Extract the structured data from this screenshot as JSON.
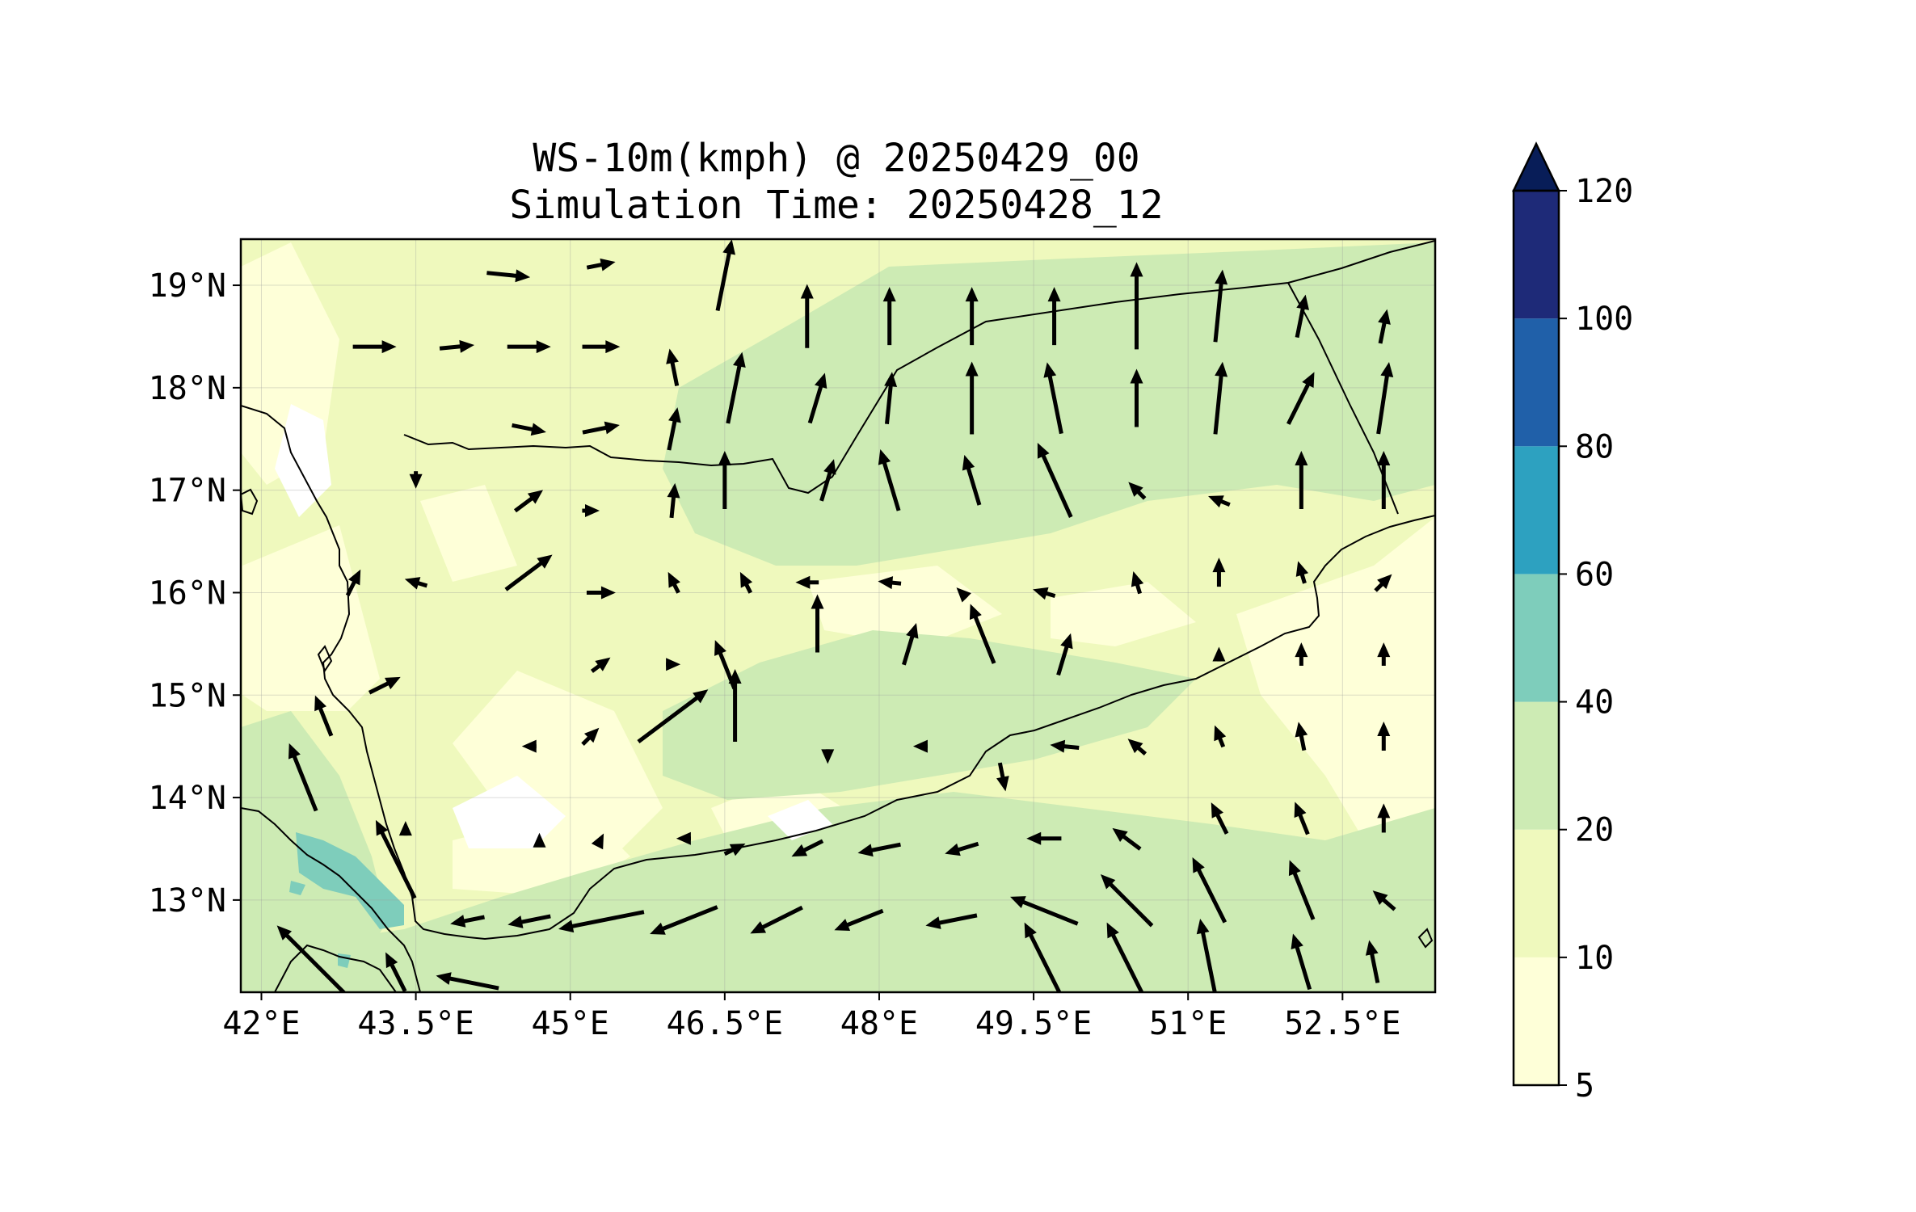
{
  "title": {
    "line1": "WS-10m(kmph) @ 20250429_00",
    "line2": "Simulation Time: 20250428_12"
  },
  "map": {
    "lon_range": [
      41.8,
      53.4
    ],
    "lat_range": [
      12.1,
      19.45
    ],
    "x_ticks": [
      {
        "value": 42.0,
        "label": "42°E"
      },
      {
        "value": 43.5,
        "label": "43.5°E"
      },
      {
        "value": 45.0,
        "label": "45°E"
      },
      {
        "value": 46.5,
        "label": "46.5°E"
      },
      {
        "value": 48.0,
        "label": "48°E"
      },
      {
        "value": 49.5,
        "label": "49.5°E"
      },
      {
        "value": 51.0,
        "label": "51°E"
      },
      {
        "value": 52.5,
        "label": "52.5°E"
      }
    ],
    "y_ticks": [
      {
        "value": 13,
        "label": "13°N"
      },
      {
        "value": 14,
        "label": "14°N"
      },
      {
        "value": 15,
        "label": "15°N"
      },
      {
        "value": 16,
        "label": "16°N"
      },
      {
        "value": 17,
        "label": "17°N"
      },
      {
        "value": 18,
        "label": "18°N"
      },
      {
        "value": 19,
        "label": "19°N"
      }
    ],
    "grid": true,
    "wind_vectors": [
      {
        "lon": 43.1,
        "lat": 18.4,
        "u": 1,
        "v": 0,
        "speed": 15
      },
      {
        "lon": 43.9,
        "lat": 18.4,
        "u": 1,
        "v": 0.1,
        "speed": 12
      },
      {
        "lon": 44.6,
        "lat": 18.4,
        "u": 1,
        "v": 0,
        "speed": 15
      },
      {
        "lon": 45.3,
        "lat": 18.4,
        "u": 1,
        "v": 0,
        "speed": 13
      },
      {
        "lon": 46.0,
        "lat": 18.2,
        "u": -0.2,
        "v": 1,
        "speed": 13
      },
      {
        "lon": 46.6,
        "lat": 18.0,
        "u": 0.2,
        "v": 1,
        "speed": 25
      },
      {
        "lon": 47.4,
        "lat": 17.9,
        "u": 0.3,
        "v": 1,
        "speed": 18
      },
      {
        "lon": 48.1,
        "lat": 17.9,
        "u": 0.1,
        "v": 1,
        "speed": 18
      },
      {
        "lon": 48.9,
        "lat": 17.9,
        "u": 0,
        "v": 1,
        "speed": 25
      },
      {
        "lon": 49.7,
        "lat": 17.9,
        "u": -0.2,
        "v": 1,
        "speed": 25
      },
      {
        "lon": 50.5,
        "lat": 17.9,
        "u": 0,
        "v": 1,
        "speed": 20
      },
      {
        "lon": 51.3,
        "lat": 17.9,
        "u": 0.1,
        "v": 1,
        "speed": 25
      },
      {
        "lon": 52.1,
        "lat": 17.9,
        "u": 0.5,
        "v": 1,
        "speed": 20
      },
      {
        "lon": 52.9,
        "lat": 17.9,
        "u": 0.15,
        "v": 1,
        "speed": 25
      },
      {
        "lon": 44.4,
        "lat": 19.1,
        "u": 1,
        "v": -0.1,
        "speed": 15
      },
      {
        "lon": 45.3,
        "lat": 19.2,
        "u": 1,
        "v": 0.2,
        "speed": 10
      },
      {
        "lon": 46.5,
        "lat": 19.1,
        "u": 0.2,
        "v": 1,
        "speed": 25
      },
      {
        "lon": 47.3,
        "lat": 18.7,
        "u": 0,
        "v": 1,
        "speed": 22
      },
      {
        "lon": 48.1,
        "lat": 18.7,
        "u": 0,
        "v": 1,
        "speed": 20
      },
      {
        "lon": 48.9,
        "lat": 18.7,
        "u": 0,
        "v": 1,
        "speed": 20
      },
      {
        "lon": 49.7,
        "lat": 18.7,
        "u": 0,
        "v": 1,
        "speed": 20
      },
      {
        "lon": 50.5,
        "lat": 18.8,
        "u": 0,
        "v": 1,
        "speed": 30
      },
      {
        "lon": 51.3,
        "lat": 18.8,
        "u": 0.1,
        "v": 1,
        "speed": 25
      },
      {
        "lon": 52.1,
        "lat": 18.7,
        "u": 0.2,
        "v": 1,
        "speed": 15
      },
      {
        "lon": 52.9,
        "lat": 18.6,
        "u": 0.2,
        "v": 1,
        "speed": 12
      },
      {
        "lon": 44.6,
        "lat": 17.6,
        "u": 1,
        "v": -0.2,
        "speed": 12
      },
      {
        "lon": 45.3,
        "lat": 17.6,
        "u": 1,
        "v": 0.2,
        "speed": 13
      },
      {
        "lon": 46.0,
        "lat": 17.6,
        "u": 0.2,
        "v": 1,
        "speed": 15
      },
      {
        "lon": 46.5,
        "lat": 17.1,
        "u": 0,
        "v": 1,
        "speed": 20
      },
      {
        "lon": 47.5,
        "lat": 17.1,
        "u": 0.3,
        "v": 1,
        "speed": 15
      },
      {
        "lon": 48.1,
        "lat": 17.1,
        "u": -0.3,
        "v": 1,
        "speed": 22
      },
      {
        "lon": 48.9,
        "lat": 17.1,
        "u": -0.3,
        "v": 1,
        "speed": 18
      },
      {
        "lon": 49.7,
        "lat": 17.1,
        "u": -0.45,
        "v": 1,
        "speed": 28
      },
      {
        "lon": 50.5,
        "lat": 17.0,
        "u": -0.7,
        "v": 0.7,
        "speed": 8
      },
      {
        "lon": 51.3,
        "lat": 16.9,
        "u": -1,
        "v": 0.4,
        "speed": 8
      },
      {
        "lon": 52.1,
        "lat": 17.1,
        "u": 0,
        "v": 1,
        "speed": 20
      },
      {
        "lon": 52.9,
        "lat": 17.1,
        "u": 0,
        "v": 1,
        "speed": 20
      },
      {
        "lon": 43.5,
        "lat": 17.1,
        "u": 0,
        "v": -1,
        "speed": 6
      },
      {
        "lon": 44.6,
        "lat": 16.9,
        "u": 0.8,
        "v": 0.6,
        "speed": 12
      },
      {
        "lon": 45.2,
        "lat": 16.8,
        "u": 1,
        "v": 0,
        "speed": 6
      },
      {
        "lon": 46.0,
        "lat": 16.9,
        "u": 0.1,
        "v": 1,
        "speed": 12
      },
      {
        "lon": 42.9,
        "lat": 16.1,
        "u": 0.5,
        "v": 1,
        "speed": 10
      },
      {
        "lon": 43.5,
        "lat": 16.1,
        "u": -1,
        "v": 0.3,
        "speed": 8
      },
      {
        "lon": 44.6,
        "lat": 16.2,
        "u": 0.8,
        "v": 0.6,
        "speed": 20
      },
      {
        "lon": 45.3,
        "lat": 16.0,
        "u": 1,
        "v": 0,
        "speed": 10
      },
      {
        "lon": 46.0,
        "lat": 16.1,
        "u": -0.5,
        "v": 1,
        "speed": 8
      },
      {
        "lon": 46.7,
        "lat": 16.1,
        "u": -0.5,
        "v": 1,
        "speed": 8
      },
      {
        "lon": 47.3,
        "lat": 16.1,
        "u": -1,
        "v": 0,
        "speed": 8
      },
      {
        "lon": 48.1,
        "lat": 16.1,
        "u": -1,
        "v": 0.1,
        "speed": 8
      },
      {
        "lon": 48.8,
        "lat": 16.0,
        "u": -0.7,
        "v": 0.7,
        "speed": 5
      },
      {
        "lon": 49.6,
        "lat": 16.0,
        "u": -1,
        "v": 0.3,
        "speed": 8
      },
      {
        "lon": 50.5,
        "lat": 16.1,
        "u": -0.3,
        "v": 1,
        "speed": 8
      },
      {
        "lon": 51.3,
        "lat": 16.2,
        "u": 0,
        "v": 1,
        "speed": 10
      },
      {
        "lon": 52.1,
        "lat": 16.2,
        "u": -0.3,
        "v": 1,
        "speed": 8
      },
      {
        "lon": 52.9,
        "lat": 16.1,
        "u": 0.7,
        "v": 0.7,
        "speed": 8
      },
      {
        "lon": 47.4,
        "lat": 15.7,
        "u": 0,
        "v": 1,
        "speed": 20
      },
      {
        "lon": 48.3,
        "lat": 15.5,
        "u": 0.3,
        "v": 1,
        "speed": 15
      },
      {
        "lon": 49.0,
        "lat": 15.6,
        "u": -0.4,
        "v": 1,
        "speed": 22
      },
      {
        "lon": 49.8,
        "lat": 15.4,
        "u": 0.3,
        "v": 1,
        "speed": 15
      },
      {
        "lon": 46.5,
        "lat": 15.3,
        "u": -0.4,
        "v": 1,
        "speed": 18
      },
      {
        "lon": 46.6,
        "lat": 14.9,
        "u": 0,
        "v": 1,
        "speed": 25
      },
      {
        "lon": 43.2,
        "lat": 15.1,
        "u": 1,
        "v": 0.5,
        "speed": 12
      },
      {
        "lon": 45.3,
        "lat": 15.3,
        "u": 0.8,
        "v": 0.6,
        "speed": 8
      },
      {
        "lon": 46.0,
        "lat": 15.3,
        "u": 1,
        "v": 0,
        "speed": 5
      },
      {
        "lon": 51.3,
        "lat": 15.4,
        "u": 0,
        "v": 1,
        "speed": 5
      },
      {
        "lon": 52.1,
        "lat": 15.4,
        "u": 0,
        "v": 1,
        "speed": 8
      },
      {
        "lon": 52.9,
        "lat": 15.4,
        "u": 0,
        "v": 1,
        "speed": 8
      },
      {
        "lon": 42.6,
        "lat": 14.8,
        "u": -0.4,
        "v": 1,
        "speed": 15
      },
      {
        "lon": 46.0,
        "lat": 14.8,
        "u": 0.8,
        "v": 0.6,
        "speed": 30
      },
      {
        "lon": 44.6,
        "lat": 14.5,
        "u": -1,
        "v": 0,
        "speed": 5
      },
      {
        "lon": 45.2,
        "lat": 14.6,
        "u": 0.7,
        "v": 0.7,
        "speed": 8
      },
      {
        "lon": 47.5,
        "lat": 14.4,
        "u": 0,
        "v": -1,
        "speed": 5
      },
      {
        "lon": 48.4,
        "lat": 14.5,
        "u": -1,
        "v": 0,
        "speed": 5
      },
      {
        "lon": 49.2,
        "lat": 14.2,
        "u": 0.2,
        "v": -1,
        "speed": 10
      },
      {
        "lon": 49.8,
        "lat": 14.5,
        "u": -1,
        "v": 0.1,
        "speed": 10
      },
      {
        "lon": 50.5,
        "lat": 14.5,
        "u": -0.7,
        "v": 0.6,
        "speed": 8
      },
      {
        "lon": 51.3,
        "lat": 14.6,
        "u": -0.4,
        "v": 1,
        "speed": 8
      },
      {
        "lon": 52.1,
        "lat": 14.6,
        "u": -0.2,
        "v": 1,
        "speed": 10
      },
      {
        "lon": 52.9,
        "lat": 14.6,
        "u": 0,
        "v": 1,
        "speed": 10
      },
      {
        "lon": 42.4,
        "lat": 14.2,
        "u": -0.4,
        "v": 1,
        "speed": 25
      },
      {
        "lon": 43.3,
        "lat": 13.4,
        "u": -0.5,
        "v": 1,
        "speed": 30
      },
      {
        "lon": 43.4,
        "lat": 13.7,
        "u": 0,
        "v": 1,
        "speed": 5
      },
      {
        "lon": 44.7,
        "lat": 13.6,
        "u": 0,
        "v": 1,
        "speed": 3
      },
      {
        "lon": 45.3,
        "lat": 13.6,
        "u": 0.5,
        "v": 1,
        "speed": 3
      },
      {
        "lon": 46.1,
        "lat": 13.6,
        "u": -1,
        "v": 0,
        "speed": 5
      },
      {
        "lon": 46.6,
        "lat": 13.5,
        "u": 1,
        "v": 0.5,
        "speed": 8
      },
      {
        "lon": 47.3,
        "lat": 13.5,
        "u": -1,
        "v": -0.5,
        "speed": 12
      },
      {
        "lon": 48.0,
        "lat": 13.5,
        "u": -1,
        "v": -0.2,
        "speed": 15
      },
      {
        "lon": 48.8,
        "lat": 13.5,
        "u": -1,
        "v": -0.3,
        "speed": 12
      },
      {
        "lon": 49.6,
        "lat": 13.6,
        "u": -1,
        "v": 0,
        "speed": 12
      },
      {
        "lon": 50.4,
        "lat": 13.6,
        "u": -0.8,
        "v": 0.6,
        "speed": 12
      },
      {
        "lon": 51.3,
        "lat": 13.8,
        "u": -0.5,
        "v": 1,
        "speed": 12
      },
      {
        "lon": 52.1,
        "lat": 13.8,
        "u": -0.4,
        "v": 1,
        "speed": 12
      },
      {
        "lon": 52.9,
        "lat": 13.8,
        "u": 0,
        "v": 1,
        "speed": 10
      },
      {
        "lon": 44.0,
        "lat": 12.8,
        "u": -1,
        "v": -0.2,
        "speed": 12
      },
      {
        "lon": 44.6,
        "lat": 12.8,
        "u": -1,
        "v": -0.2,
        "speed": 15
      },
      {
        "lon": 45.3,
        "lat": 12.8,
        "u": -1,
        "v": -0.2,
        "speed": 30
      },
      {
        "lon": 46.1,
        "lat": 12.8,
        "u": -1,
        "v": -0.4,
        "speed": 25
      },
      {
        "lon": 47.0,
        "lat": 12.8,
        "u": -1,
        "v": -0.5,
        "speed": 20
      },
      {
        "lon": 47.8,
        "lat": 12.8,
        "u": -1,
        "v": -0.4,
        "speed": 18
      },
      {
        "lon": 48.7,
        "lat": 12.8,
        "u": -1,
        "v": -0.2,
        "speed": 18
      },
      {
        "lon": 49.6,
        "lat": 12.9,
        "u": -1,
        "v": 0.4,
        "speed": 25
      },
      {
        "lon": 50.4,
        "lat": 13.0,
        "u": -0.7,
        "v": 0.7,
        "speed": 25
      },
      {
        "lon": 51.2,
        "lat": 13.1,
        "u": -0.5,
        "v": 1,
        "speed": 25
      },
      {
        "lon": 52.1,
        "lat": 13.1,
        "u": -0.4,
        "v": 1,
        "speed": 22
      },
      {
        "lon": 52.9,
        "lat": 13.0,
        "u": -0.7,
        "v": 0.6,
        "speed": 10
      },
      {
        "lon": 42.5,
        "lat": 12.4,
        "u": -0.7,
        "v": 0.7,
        "speed": 35
      },
      {
        "lon": 43.3,
        "lat": 12.3,
        "u": -0.5,
        "v": 1,
        "speed": 15
      },
      {
        "lon": 44.0,
        "lat": 12.2,
        "u": -1,
        "v": 0.2,
        "speed": 22
      },
      {
        "lon": 49.6,
        "lat": 12.4,
        "u": -0.5,
        "v": 1,
        "speed": 30
      },
      {
        "lon": 50.4,
        "lat": 12.4,
        "u": -0.5,
        "v": 1,
        "speed": 30
      },
      {
        "lon": 51.2,
        "lat": 12.4,
        "u": -0.2,
        "v": 1,
        "speed": 30
      },
      {
        "lon": 52.1,
        "lat": 12.4,
        "u": -0.3,
        "v": 1,
        "speed": 20
      },
      {
        "lon": 52.8,
        "lat": 12.4,
        "u": -0.2,
        "v": 1,
        "speed": 15
      }
    ]
  },
  "colorbar": {
    "levels": [
      5,
      10,
      20,
      40,
      60,
      80,
      100,
      120
    ],
    "labels": [
      "5",
      "10",
      "20",
      "40",
      "60",
      "80",
      "100",
      "120"
    ],
    "colors": [
      "#feffd8",
      "#eff9bd",
      "#cdebb4",
      "#7ecdbb",
      "#2da1c0",
      "#2060a9",
      "#1e2a78"
    ],
    "extend_color": "#081d58"
  }
}
